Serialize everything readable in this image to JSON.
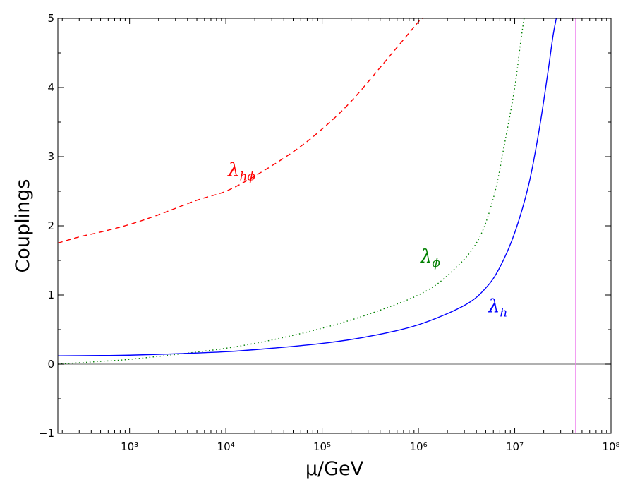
{
  "chart_data": {
    "type": "line",
    "xlabel": "μ/GeV",
    "ylabel": "Couplings",
    "xscale": "log",
    "xlim": [
      180,
      100000000
    ],
    "ylim": [
      -1,
      5
    ],
    "x_ticks": [
      {
        "value": 1000,
        "label": "10³"
      },
      {
        "value": 10000,
        "label": "10⁴"
      },
      {
        "value": 100000,
        "label": "10⁵"
      },
      {
        "value": 1000000,
        "label": "10⁶"
      },
      {
        "value": 10000000,
        "label": "10⁷"
      },
      {
        "value": 100000000,
        "label": "10⁸"
      }
    ],
    "y_ticks": [
      {
        "value": -1,
        "label": "−1"
      },
      {
        "value": 0,
        "label": "0"
      },
      {
        "value": 1,
        "label": "1"
      },
      {
        "value": 2,
        "label": "2"
      },
      {
        "value": 3,
        "label": "3"
      },
      {
        "value": 4,
        "label": "4"
      },
      {
        "value": 5,
        "label": "5"
      }
    ],
    "grid": false,
    "reference_lines": [
      {
        "orientation": "horizontal",
        "value": 0,
        "color": "#808080"
      },
      {
        "orientation": "vertical",
        "value": 43000000,
        "color": "#ee82ee"
      }
    ],
    "series": [
      {
        "label_main": "λ",
        "label_sub": "hϕ",
        "color": "#ff0000",
        "style": "dashed",
        "label_at": [
          10500,
          2.72
        ],
        "x": [
          180,
          300,
          500,
          1000,
          2000,
          5000,
          10000,
          20000,
          50000,
          100000,
          200000,
          500000,
          1000000,
          1100000
        ],
        "y": [
          1.75,
          1.84,
          1.91,
          2.02,
          2.16,
          2.37,
          2.5,
          2.72,
          3.07,
          3.4,
          3.8,
          4.45,
          4.95,
          5.0
        ]
      },
      {
        "label_main": "λ",
        "label_sub": "ϕ",
        "color": "#008000",
        "style": "dotted",
        "label_at": [
          1050000,
          1.47
        ],
        "x": [
          180,
          500,
          1000,
          3000,
          10000,
          30000,
          100000,
          300000,
          1000000,
          2000000,
          4000000,
          6000000,
          8000000,
          10000000,
          11500000,
          12500000
        ],
        "y": [
          0.0,
          0.04,
          0.07,
          0.14,
          0.23,
          0.35,
          0.52,
          0.72,
          1.0,
          1.28,
          1.75,
          2.4,
          3.25,
          4.0,
          4.65,
          5.0
        ]
      },
      {
        "label_main": "λ",
        "label_sub": "h",
        "color": "#0000ff",
        "style": "solid",
        "label_at": [
          5300000,
          0.75
        ],
        "x": [
          180,
          500,
          1000,
          3000,
          10000,
          30000,
          100000,
          300000,
          1000000,
          3000000,
          5000000,
          7000000,
          10000000,
          14000000,
          18000000,
          22000000,
          25000000,
          27000000
        ],
        "y": [
          0.12,
          0.125,
          0.13,
          0.15,
          0.18,
          0.23,
          0.3,
          0.4,
          0.57,
          0.85,
          1.1,
          1.4,
          1.9,
          2.6,
          3.4,
          4.2,
          4.75,
          5.0
        ]
      }
    ]
  }
}
